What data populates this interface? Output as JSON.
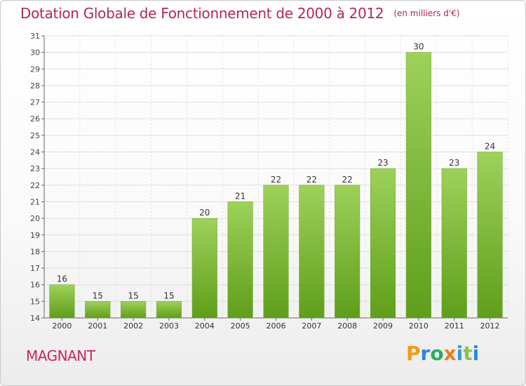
{
  "title": "Dotation Globale de Fonctionnement de 2000 à 2012",
  "unit_note": "(en milliers d'€)",
  "commune": "MAGNANT",
  "logo": {
    "text": "Proxiti",
    "colors": [
      "#f39c12",
      "#2e86de",
      "#27ae60",
      "#e67e22",
      "#3498db",
      "#8bc34a",
      "#2e86de"
    ]
  },
  "colors": {
    "bar_top": "#9ed15a",
    "bar_bottom": "#5f9e1a",
    "title": "#b4245c",
    "commune": "#c8265f",
    "grid": "#dddddd",
    "axis": "#666666"
  },
  "chart_data": {
    "type": "bar",
    "title": "Dotation Globale de Fonctionnement de 2000 à 2012",
    "xlabel": "",
    "ylabel": "",
    "categories": [
      "2000",
      "2001",
      "2002",
      "2003",
      "2004",
      "2005",
      "2006",
      "2007",
      "2008",
      "2009",
      "2010",
      "2011",
      "2012"
    ],
    "values": [
      16,
      15,
      15,
      15,
      20,
      21,
      22,
      22,
      22,
      23,
      30,
      23,
      24
    ],
    "data_labels": [
      "16",
      "15",
      "15",
      "15",
      "20",
      "21",
      "22",
      "22",
      "22",
      "23",
      "30",
      "23",
      "24"
    ],
    "ylim": [
      14,
      31
    ],
    "yticks": [
      14,
      15,
      16,
      17,
      18,
      19,
      20,
      21,
      22,
      23,
      24,
      25,
      26,
      27,
      28,
      29,
      30,
      31
    ],
    "grid": true
  }
}
